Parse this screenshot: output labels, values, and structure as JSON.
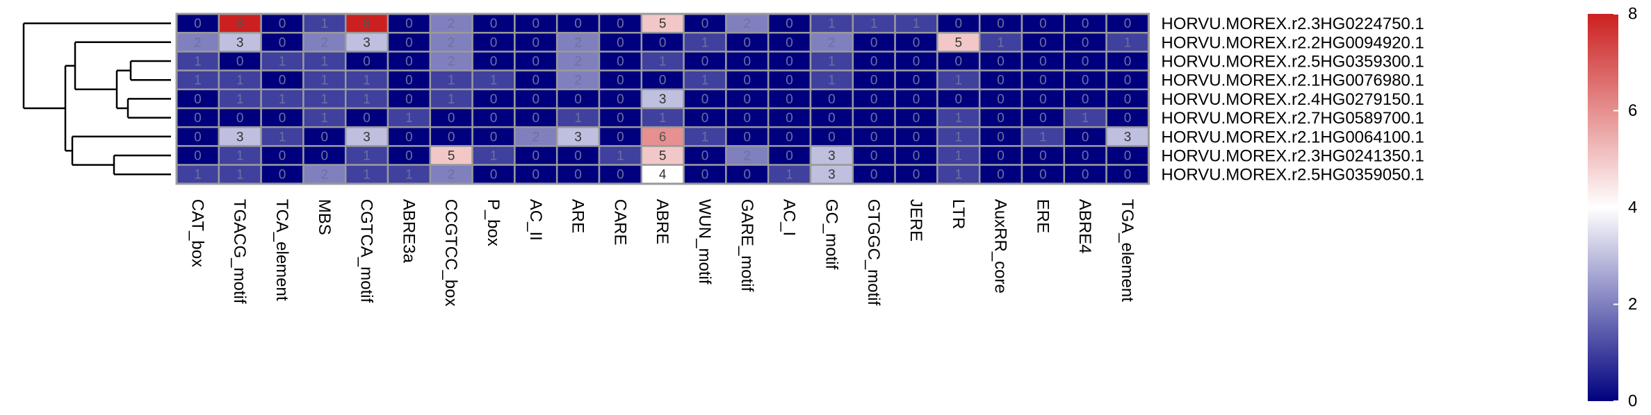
{
  "chart_data": {
    "type": "heatmap",
    "columns": [
      "CAT_box",
      "TGACG_motif",
      "TCA_element",
      "MBS",
      "CGTCA_motif",
      "ABRE3a",
      "CCGTCC_box",
      "P_box",
      "AC_II",
      "ARE",
      "CARE",
      "ABRE",
      "WUN_motif",
      "GARE_motif",
      "AC_I",
      "GC_motif",
      "GTGGC_motif",
      "JERE",
      "LTR",
      "AuxRR_core",
      "ERE",
      "ABRE4",
      "TGA_element"
    ],
    "rows": [
      "HORVU.MOREX.r2.3HG0224750.1",
      "HORVU.MOREX.r2.2HG0094920.1",
      "HORVU.MOREX.r2.5HG0359300.1",
      "HORVU.MOREX.r2.1HG0076980.1",
      "HORVU.MOREX.r2.4HG0279150.1",
      "HORVU.MOREX.r2.7HG0589700.1",
      "HORVU.MOREX.r2.1HG0064100.1",
      "HORVU.MOREX.r2.3HG0241350.1",
      "HORVU.MOREX.r2.5HG0359050.1"
    ],
    "values": [
      [
        0,
        8,
        0,
        1,
        8,
        0,
        2,
        0,
        0,
        0,
        0,
        5,
        0,
        2,
        0,
        1,
        1,
        1,
        0,
        0,
        0,
        0,
        0
      ],
      [
        2,
        3,
        0,
        2,
        3,
        0,
        2,
        0,
        0,
        2,
        0,
        0,
        1,
        0,
        0,
        2,
        0,
        0,
        5,
        1,
        0,
        0,
        1
      ],
      [
        1,
        0,
        1,
        1,
        0,
        0,
        2,
        0,
        0,
        2,
        0,
        1,
        0,
        0,
        0,
        1,
        0,
        0,
        0,
        0,
        0,
        0,
        0
      ],
      [
        1,
        1,
        0,
        1,
        1,
        0,
        1,
        1,
        0,
        2,
        0,
        0,
        1,
        0,
        0,
        1,
        0,
        0,
        1,
        0,
        0,
        0,
        0
      ],
      [
        0,
        1,
        1,
        1,
        1,
        0,
        1,
        0,
        0,
        0,
        0,
        3,
        0,
        0,
        0,
        0,
        0,
        0,
        0,
        0,
        0,
        0,
        0
      ],
      [
        0,
        0,
        0,
        1,
        0,
        1,
        0,
        0,
        0,
        1,
        0,
        1,
        0,
        0,
        0,
        0,
        0,
        0,
        1,
        0,
        0,
        1,
        0
      ],
      [
        0,
        3,
        1,
        0,
        3,
        0,
        0,
        0,
        2,
        3,
        0,
        6,
        1,
        0,
        0,
        0,
        0,
        0,
        1,
        0,
        1,
        0,
        3
      ],
      [
        0,
        1,
        0,
        0,
        1,
        0,
        5,
        1,
        0,
        0,
        1,
        5,
        0,
        2,
        0,
        3,
        0,
        0,
        1,
        0,
        0,
        0,
        0
      ],
      [
        1,
        1,
        0,
        2,
        1,
        1,
        2,
        0,
        0,
        0,
        0,
        4,
        0,
        0,
        1,
        3,
        0,
        0,
        1,
        0,
        0,
        0,
        0
      ]
    ],
    "legend": {
      "min": 0,
      "max": 8,
      "ticks": [
        0,
        2,
        4,
        6,
        8
      ]
    },
    "colors": {
      "low": "#00007f",
      "mid": "#ffffff",
      "high": "#cc2020",
      "grid": "#9a9a9a"
    },
    "dendrogram": "row clustering tree on the left",
    "legend_placement": "right"
  }
}
